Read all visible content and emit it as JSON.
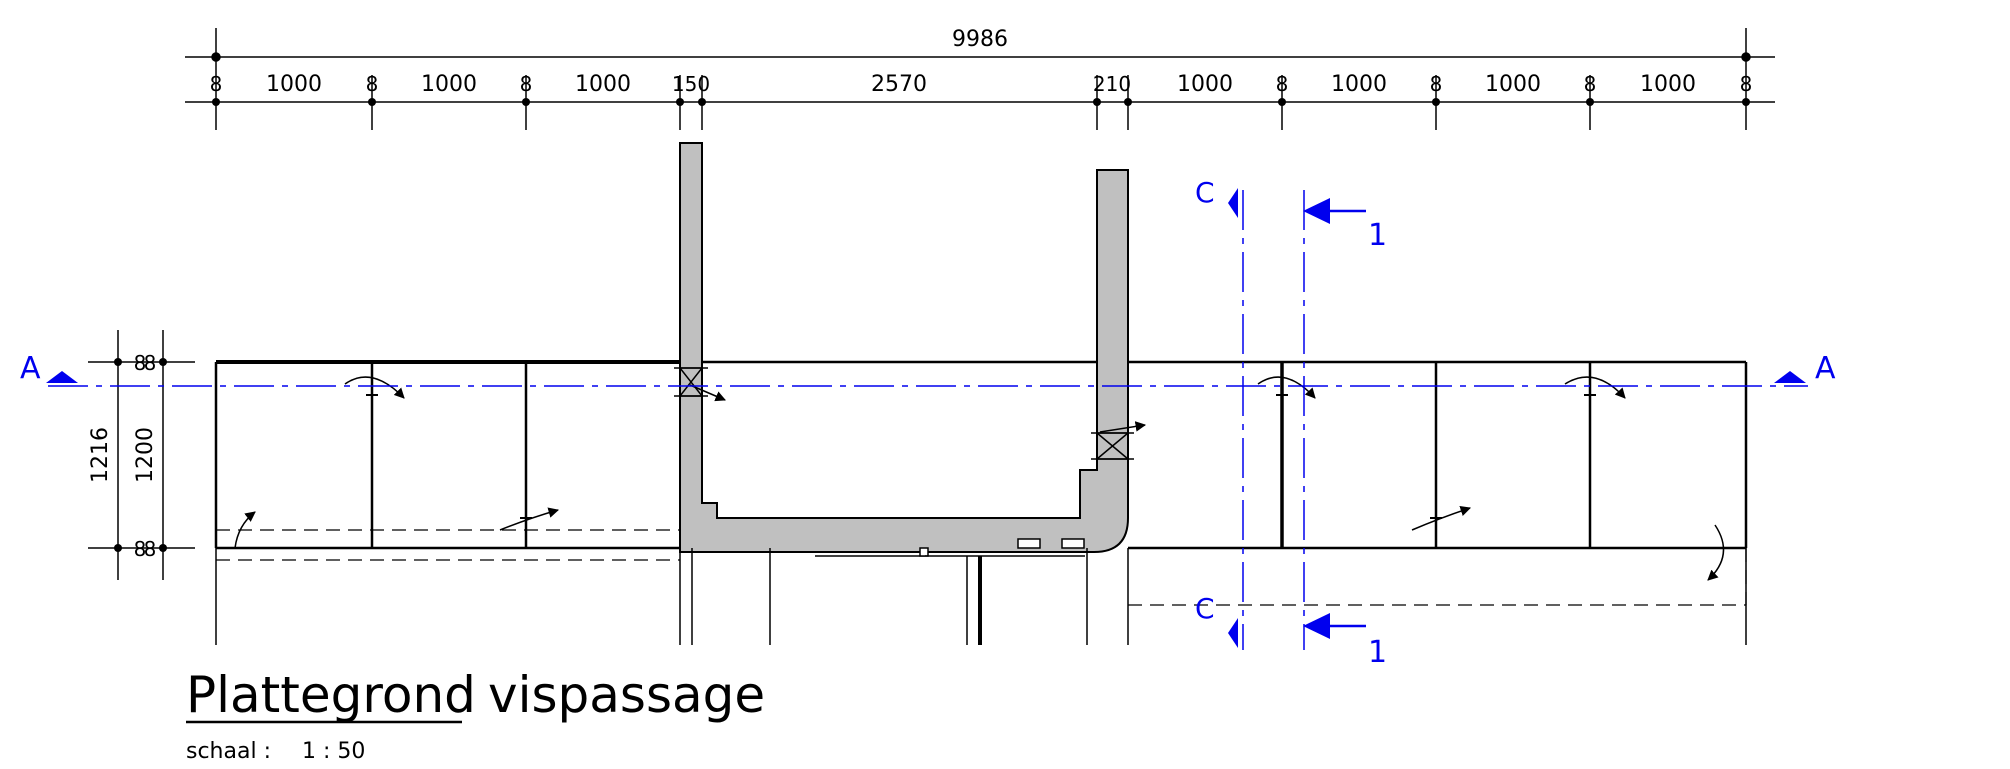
{
  "dimensions": {
    "overall": "9986",
    "segments": [
      "8",
      "1000",
      "8",
      "1000",
      "8",
      "1000",
      "150",
      "2570",
      "210",
      "1000",
      "8",
      "1000",
      "8",
      "1000",
      "8",
      "1000",
      "8"
    ],
    "vertical_outer": "1216",
    "vertical_inner": "1200",
    "vertical_small_top": "8",
    "vertical_small_top_b": "8",
    "vertical_small_bottom": "8",
    "vertical_small_bottom_b": "8"
  },
  "sections": {
    "a_left": "A",
    "a_right": "A",
    "c_top": "C",
    "c_bottom": "C",
    "one_top": "1",
    "one_bottom": "1"
  },
  "title": {
    "word1": "Plattegrond",
    "word2": "vispassage",
    "scale_label": "schaal :",
    "scale_value": "1 : 50"
  },
  "colors": {
    "line": "#000000",
    "wall_fill": "#c0c0c0",
    "section_blue": "#0000ee"
  }
}
